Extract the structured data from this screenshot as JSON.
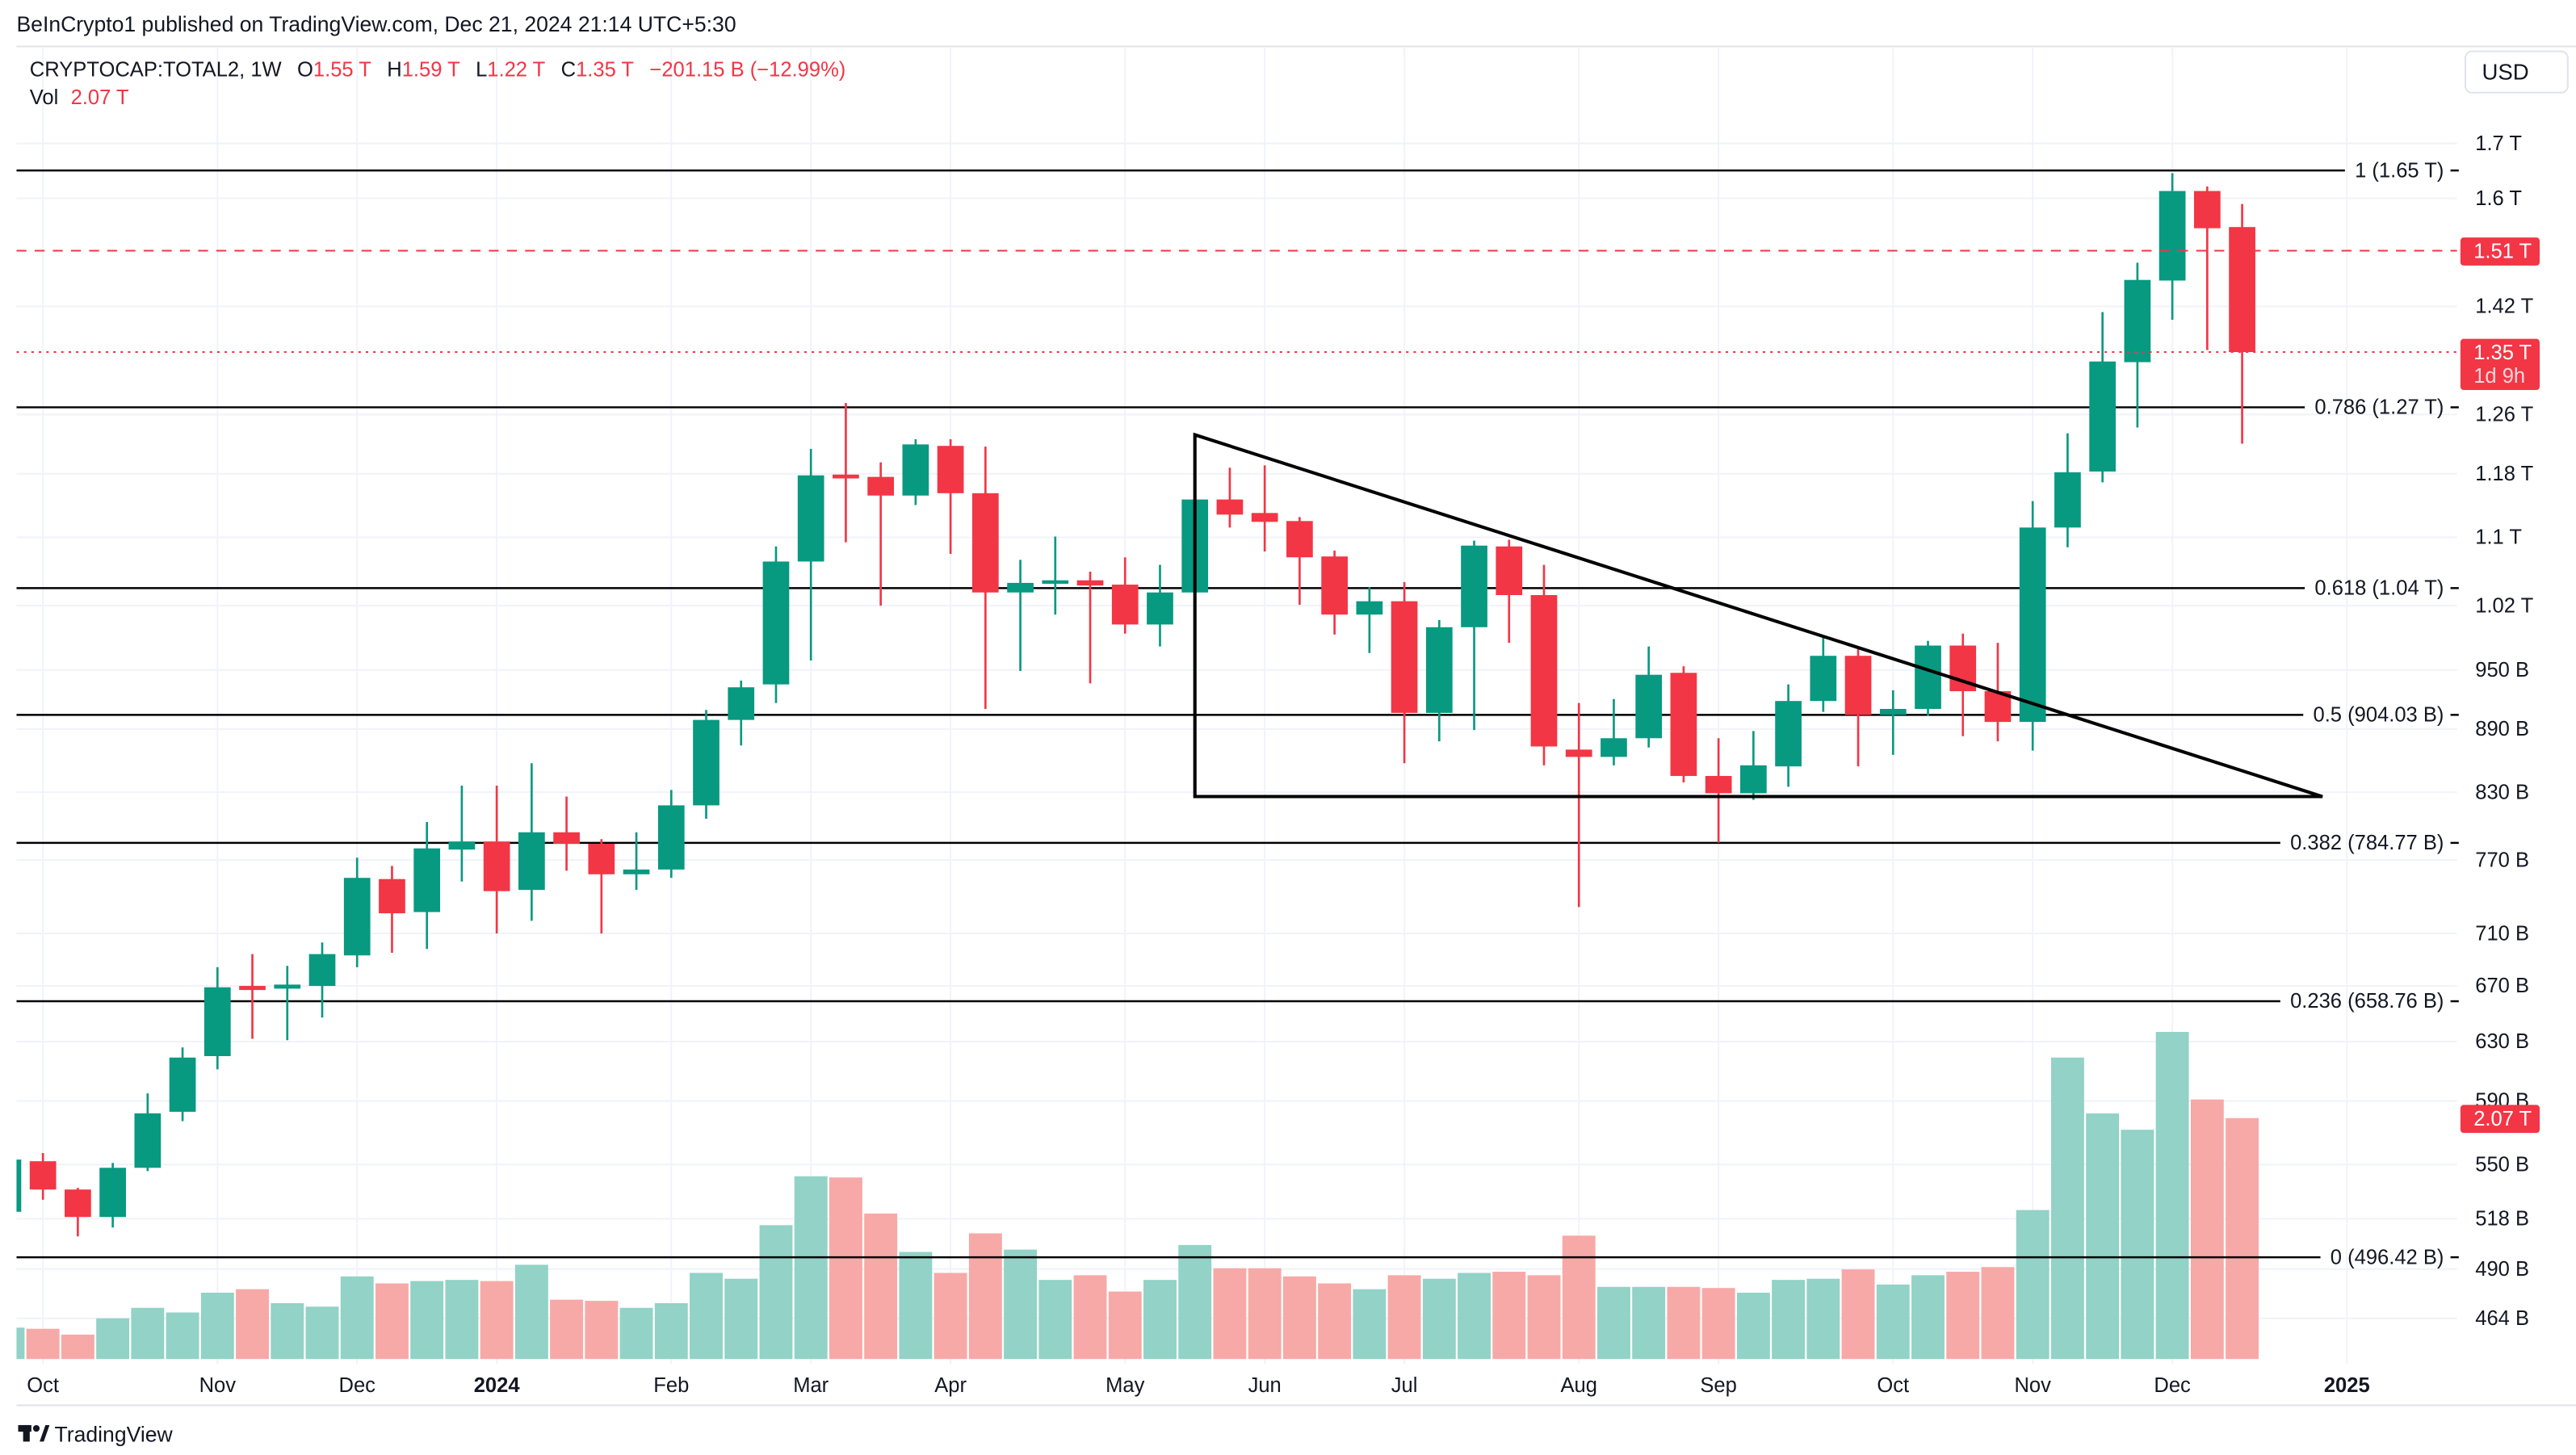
{
  "header": {
    "published": "BeInCrypto1 published on TradingView.com, Dec 21, 2024 21:14 UTC+5:30"
  },
  "legend": {
    "symbol": "CRYPTOCAP:TOTAL2, 1W",
    "o_label": "O",
    "o": "1.55 T",
    "h_label": "H",
    "h": "1.59 T",
    "l_label": "L",
    "l": "1.22 T",
    "c_label": "C",
    "c": "1.35 T",
    "change": "−201.15 B (−12.99%)",
    "vol_label": "Vol",
    "vol": "2.07 T"
  },
  "currency_button": "USD",
  "footer": {
    "logo_text": "TradingView"
  },
  "colors": {
    "up": "#089981",
    "down": "#f23645",
    "vol_up": "#92d2c7",
    "vol_down": "#f7a9a7",
    "lines": "#000000",
    "grid": "#f0f3fa"
  },
  "chart_data": {
    "type": "candlestick",
    "interval": "1W",
    "price_scale": "log",
    "price_unit": "B USD",
    "candle_fields": [
      "open",
      "high",
      "low",
      "close"
    ],
    "candles": [
      [
        522,
        556,
        519,
        553
      ],
      [
        552,
        557,
        529,
        535
      ],
      [
        535,
        536,
        508,
        519
      ],
      [
        519,
        551,
        513,
        548
      ],
      [
        548,
        595,
        546,
        582
      ],
      [
        583,
        626,
        577,
        619
      ],
      [
        620,
        684,
        611,
        669
      ],
      [
        670,
        694,
        632,
        667
      ],
      [
        668,
        685,
        631,
        671
      ],
      [
        670,
        703,
        647,
        694
      ],
      [
        693,
        772,
        684,
        755
      ],
      [
        754,
        765,
        695,
        726
      ],
      [
        727,
        803,
        698,
        780
      ],
      [
        779,
        836,
        752,
        786
      ],
      [
        786,
        836,
        710,
        744
      ],
      [
        745,
        857,
        720,
        794
      ],
      [
        794,
        826,
        761,
        784
      ],
      [
        784,
        788,
        710,
        758
      ],
      [
        758,
        794,
        745,
        762
      ],
      [
        762,
        832,
        755,
        818
      ],
      [
        818,
        909,
        806,
        899
      ],
      [
        899,
        939,
        874,
        932
      ],
      [
        935,
        1089,
        916,
        1071
      ],
      [
        1071,
        1213,
        960,
        1178
      ],
      [
        1179,
        1276,
        1094,
        1174
      ],
      [
        1176,
        1195,
        1020,
        1152
      ],
      [
        1152,
        1226,
        1140,
        1219
      ],
      [
        1217,
        1226,
        1080,
        1155
      ],
      [
        1155,
        1216,
        910,
        1035
      ],
      [
        1035,
        1073,
        949,
        1046
      ],
      [
        1045,
        1101,
        1010,
        1049
      ],
      [
        1049,
        1059,
        936,
        1043
      ],
      [
        1044,
        1076,
        989,
        999
      ],
      [
        999,
        1067,
        975,
        1035
      ],
      [
        1035,
        1186,
        1026,
        1147
      ],
      [
        1147,
        1188,
        1112,
        1128
      ],
      [
        1130,
        1191,
        1083,
        1119
      ],
      [
        1120,
        1125,
        1021,
        1076
      ],
      [
        1077,
        1084,
        988,
        1010
      ],
      [
        1010,
        1041,
        968,
        1025
      ],
      [
        1025,
        1047,
        857,
        906
      ],
      [
        906,
        1004,
        878,
        996
      ],
      [
        996,
        1096,
        889,
        1090
      ],
      [
        1089,
        1097,
        979,
        1032
      ],
      [
        1032,
        1067,
        855,
        873
      ],
      [
        870,
        916,
        731,
        863
      ],
      [
        863,
        920,
        855,
        881
      ],
      [
        881,
        975,
        872,
        945
      ],
      [
        947,
        954,
        839,
        845
      ],
      [
        845,
        881,
        785,
        829
      ],
      [
        829,
        888,
        823,
        855
      ],
      [
        854,
        935,
        835,
        918
      ],
      [
        918,
        985,
        907,
        965
      ],
      [
        965,
        972,
        854,
        904
      ],
      [
        904,
        929,
        865,
        910
      ],
      [
        910,
        981,
        903,
        976
      ],
      [
        976,
        989,
        883,
        928
      ],
      [
        928,
        979,
        878,
        897
      ],
      [
        897,
        1145,
        869,
        1112
      ],
      [
        1112,
        1234,
        1088,
        1182
      ],
      [
        1183,
        1411,
        1169,
        1336
      ],
      [
        1335,
        1490,
        1242,
        1462
      ],
      [
        1461,
        1645,
        1399,
        1613
      ],
      [
        1613,
        1621,
        1353,
        1548
      ],
      [
        1550,
        1590,
        1220,
        1350
      ]
    ],
    "volume_T": [
      0.27,
      0.26,
      0.21,
      0.35,
      0.44,
      0.4,
      0.57,
      0.6,
      0.48,
      0.45,
      0.71,
      0.65,
      0.67,
      0.68,
      0.67,
      0.81,
      0.51,
      0.5,
      0.44,
      0.48,
      0.74,
      0.69,
      1.15,
      1.57,
      1.56,
      1.25,
      0.92,
      0.74,
      1.08,
      0.94,
      0.68,
      0.72,
      0.58,
      0.68,
      0.98,
      0.78,
      0.78,
      0.71,
      0.65,
      0.6,
      0.72,
      0.69,
      0.74,
      0.75,
      0.72,
      1.06,
      0.62,
      0.62,
      0.62,
      0.61,
      0.57,
      0.68,
      0.69,
      0.77,
      0.64,
      0.72,
      0.75,
      0.79,
      1.28,
      2.59,
      2.11,
      1.97,
      2.81,
      2.23,
      2.07
    ],
    "price_ticks": [
      {
        "label": "1.7 T",
        "value": 1700
      },
      {
        "label": "1.6 T",
        "value": 1600
      },
      {
        "label": "1.42 T",
        "value": 1420
      },
      {
        "label": "1.26 T",
        "value": 1260
      },
      {
        "label": "1.18 T",
        "value": 1180
      },
      {
        "label": "1.1 T",
        "value": 1100
      },
      {
        "label": "1.02 T",
        "value": 1020
      },
      {
        "label": "950 B",
        "value": 950
      },
      {
        "label": "890 B",
        "value": 890
      },
      {
        "label": "830 B",
        "value": 830
      },
      {
        "label": "770 B",
        "value": 770
      },
      {
        "label": "710 B",
        "value": 710
      },
      {
        "label": "670 B",
        "value": 670
      },
      {
        "label": "630 B",
        "value": 630
      },
      {
        "label": "590 B",
        "value": 590
      },
      {
        "label": "550 B",
        "value": 550
      },
      {
        "label": "518 B",
        "value": 518
      },
      {
        "label": "490 B",
        "value": 490
      },
      {
        "label": "464 B",
        "value": 464
      }
    ],
    "time_ticks": [
      {
        "label": "Oct",
        "week": 0,
        "bold": false
      },
      {
        "label": "Nov",
        "week": 5,
        "bold": false
      },
      {
        "label": "Dec",
        "week": 9,
        "bold": false
      },
      {
        "label": "2024",
        "week": 13,
        "bold": true
      },
      {
        "label": "Feb",
        "week": 18,
        "bold": false
      },
      {
        "label": "Mar",
        "week": 22,
        "bold": false
      },
      {
        "label": "Apr",
        "week": 26,
        "bold": false
      },
      {
        "label": "May",
        "week": 31,
        "bold": false
      },
      {
        "label": "Jun",
        "week": 35,
        "bold": false
      },
      {
        "label": "Jul",
        "week": 39,
        "bold": false
      },
      {
        "label": "Aug",
        "week": 44,
        "bold": false
      },
      {
        "label": "Sep",
        "week": 48,
        "bold": false
      },
      {
        "label": "Oct",
        "week": 53,
        "bold": false
      },
      {
        "label": "Nov",
        "week": 57,
        "bold": false
      },
      {
        "label": "Dec",
        "week": 61,
        "bold": false
      },
      {
        "label": "2025",
        "week": 66,
        "bold": true
      }
    ],
    "fib_levels": [
      {
        "label": "1 (1.65 T)",
        "value": 1650
      },
      {
        "label": "0.786 (1.27 T)",
        "value": 1270
      },
      {
        "label": "0.618 (1.04 T)",
        "value": 1040
      },
      {
        "label": "0.5 (904.03 B)",
        "value": 904.03
      },
      {
        "label": "0.382 (784.77 B)",
        "value": 784.77
      },
      {
        "label": "0.236 (658.76 B)",
        "value": 658.76
      },
      {
        "label": "0 (496.42 B)",
        "value": 496.42
      }
    ],
    "triangle": {
      "apex_week": 33,
      "top_price": 1232,
      "base_price": 826,
      "end_week": 65.3
    },
    "markers": {
      "prev_close": {
        "label": "1.51 T",
        "value": 1510
      },
      "last": {
        "label": "1.35 T",
        "countdown": "1d 9h",
        "value": 1350
      },
      "volume_last": {
        "label": "2.07 T",
        "value": 2.07
      }
    }
  }
}
